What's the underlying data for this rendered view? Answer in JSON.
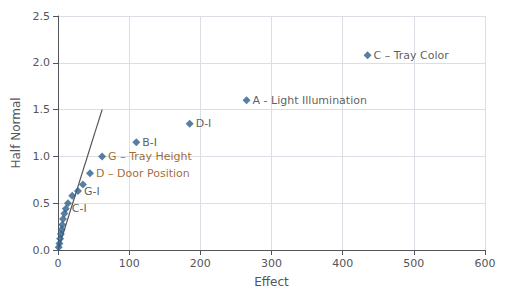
{
  "chart_data": {
    "type": "scatter",
    "xlabel": "Effect",
    "ylabel": "Half Normal",
    "xlim": [
      0,
      600
    ],
    "ylim": [
      0,
      2.5
    ],
    "xticks": [
      0,
      100,
      200,
      300,
      400,
      500,
      600
    ],
    "yticks": [
      {
        "value": 0.0,
        "label": "0.0"
      },
      0.5,
      {
        "value": 1.0,
        "label": "1.0"
      },
      1.5,
      {
        "value": 2.0,
        "label": "2.0"
      },
      2.5
    ],
    "grid": true,
    "x": [
      1,
      2,
      3,
      4,
      5,
      6,
      7,
      9,
      11,
      14,
      20,
      28,
      35,
      45,
      62,
      110,
      185,
      265,
      435
    ],
    "values": [
      0.03,
      0.07,
      0.12,
      0.17,
      0.22,
      0.27,
      0.33,
      0.39,
      0.44,
      0.5,
      0.58,
      0.63,
      0.7,
      0.82,
      1.0,
      1.15,
      1.35,
      1.6,
      2.08
    ],
    "color": "#2e5f8a",
    "marker": "diamond",
    "trend_line": {
      "type": "line",
      "x": [
        0,
        62
      ],
      "values": [
        0,
        1.5
      ],
      "color": "#555555"
    },
    "annotations": [
      {
        "text": "C-I",
        "x": 11,
        "y": 0.44,
        "color": "#333333"
      },
      {
        "text": "G-I",
        "x": 28,
        "y": 0.63,
        "color": "#333333"
      },
      {
        "text": "D – Door Position",
        "x": 45,
        "y": 0.82,
        "color": "#8B4500"
      },
      {
        "text": "G – Tray Height",
        "x": 62,
        "y": 1.0,
        "color": "#8B4500"
      },
      {
        "text": "B-I",
        "x": 110,
        "y": 1.15,
        "color": "#333333"
      },
      {
        "text": "D-I",
        "x": 185,
        "y": 1.35,
        "color": "#333333"
      },
      {
        "text": "A - Light Illumination",
        "x": 265,
        "y": 1.6,
        "color": "#333333"
      },
      {
        "text": "C – Tray Color",
        "x": 435,
        "y": 2.08,
        "color": "#333333"
      }
    ]
  }
}
